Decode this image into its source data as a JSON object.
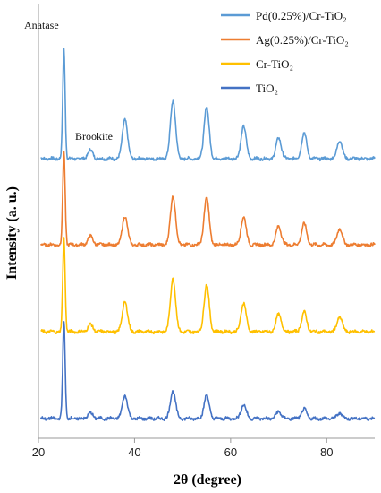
{
  "chart_data": {
    "type": "line",
    "title": "",
    "xlabel": "2θ (degree)",
    "ylabel": "Intensity (a. u.)",
    "xlim": [
      20,
      90
    ],
    "xticks": [
      20,
      40,
      60,
      80
    ],
    "xtick_labels": [
      "20",
      "40",
      "60",
      "80"
    ],
    "y_ticks_shown": false,
    "grid": false,
    "legend_position": "top-right",
    "annotations": [
      {
        "text": "Anatase",
        "x": 25.3
      },
      {
        "text": "Brookite",
        "x": 30.8
      }
    ],
    "peaks_2theta": [
      25.3,
      30.8,
      38.0,
      48.0,
      55.0,
      62.7,
      70.0,
      75.3,
      82.7
    ],
    "series": [
      {
        "name": "Pd(0.25%)/Cr-TiO₂",
        "color": "#5b9bd5",
        "baseline": 3.0,
        "peak_heights": [
          2.35,
          0.18,
          0.85,
          1.25,
          1.1,
          0.7,
          0.45,
          0.55,
          0.4
        ]
      },
      {
        "name": "Ag(0.25%)/Cr-TiO₂",
        "color": "#ed7d31",
        "baseline": 2.0,
        "peak_heights": [
          2.0,
          0.18,
          0.62,
          1.05,
          1.0,
          0.6,
          0.4,
          0.45,
          0.35
        ]
      },
      {
        "name": "Cr-TiO₂",
        "color": "#ffc000",
        "baseline": 1.0,
        "peak_heights": [
          2.0,
          0.15,
          0.65,
          1.15,
          1.0,
          0.62,
          0.38,
          0.42,
          0.32
        ]
      },
      {
        "name": "TiO₂",
        "color": "#4472c4",
        "baseline": 0.0,
        "peak_heights": [
          2.1,
          0.12,
          0.5,
          0.6,
          0.5,
          0.3,
          0.15,
          0.2,
          0.12
        ]
      }
    ]
  }
}
